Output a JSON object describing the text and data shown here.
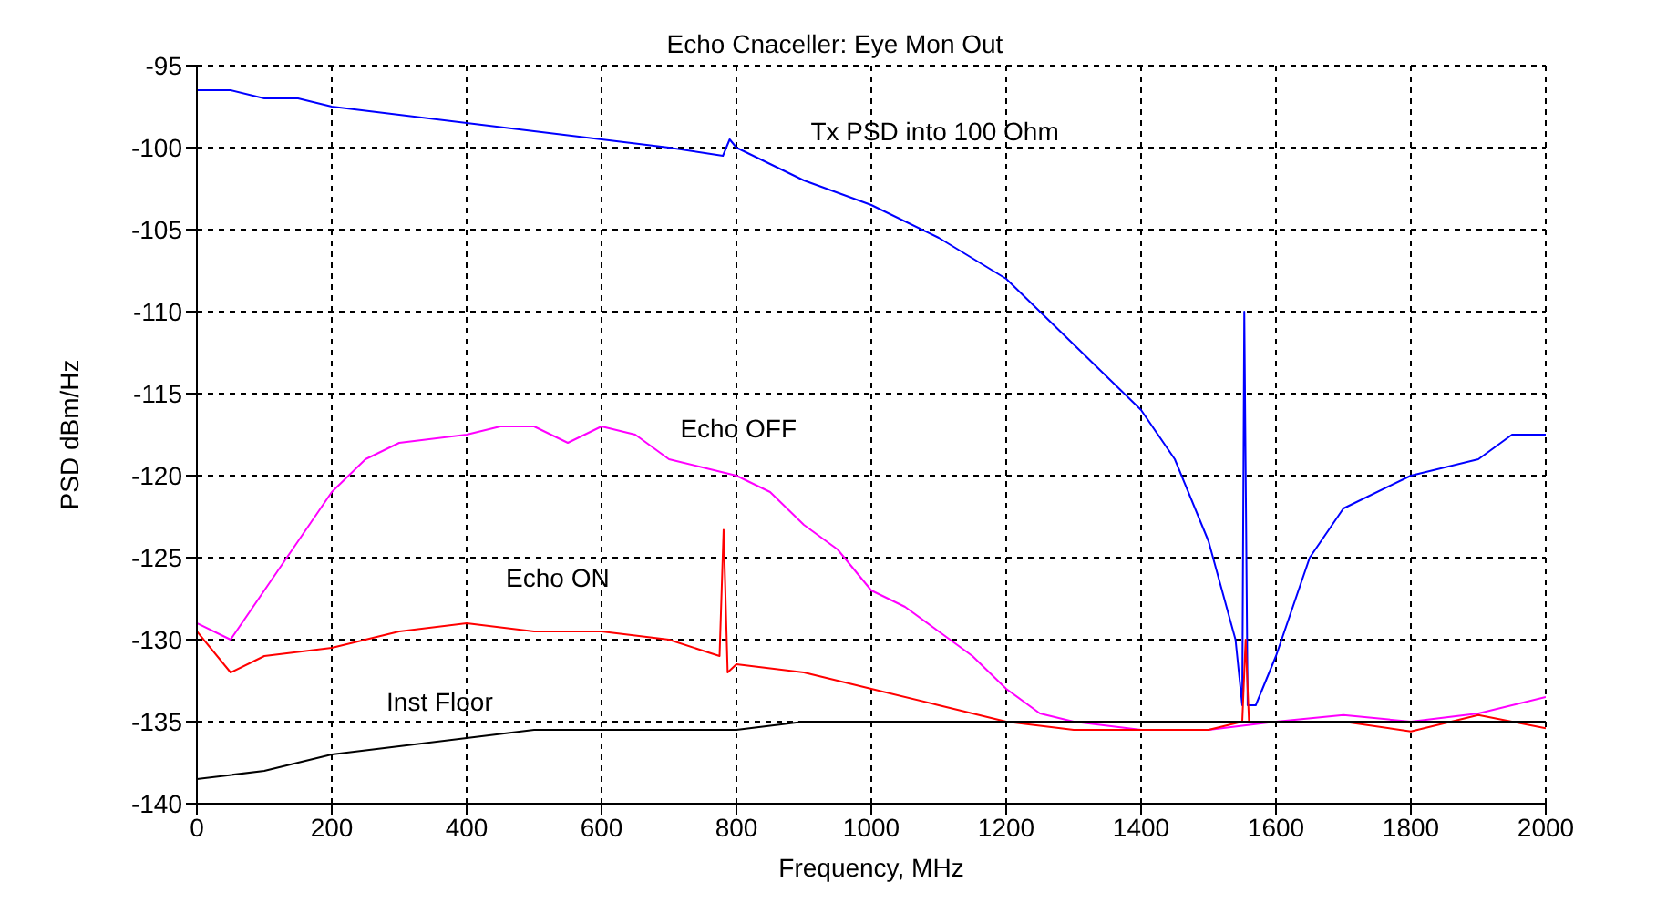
{
  "chart_data": {
    "type": "line",
    "title": "Echo Cnaceller: Eye Mon Out",
    "xlabel": "Frequency, MHz",
    "ylabel": "PSD dBm/Hz",
    "xlim": [
      0,
      2000
    ],
    "xticks": [
      0,
      200,
      400,
      600,
      800,
      1000,
      1200,
      1400,
      1600,
      1800,
      2000
    ],
    "ylim": [
      -140,
      -95
    ],
    "yticks": [
      -140,
      -135,
      -130,
      -125,
      -120,
      -115,
      -110,
      -105,
      -100,
      -95
    ],
    "grid": true,
    "marker": "none",
    "line_style": "solid",
    "series": [
      {
        "name": "Tx PSD into 100 Ohm",
        "color": "#0000ff",
        "x": [
          0,
          50,
          100,
          150,
          200,
          300,
          400,
          500,
          600,
          700,
          780,
          790,
          800,
          900,
          1000,
          1100,
          1200,
          1300,
          1400,
          1450,
          1500,
          1540,
          1550,
          1553,
          1558,
          1570,
          1580,
          1600,
          1650,
          1700,
          1800,
          1900,
          1950,
          2000
        ],
        "values": [
          -96.5,
          -96.5,
          -97,
          -97,
          -97.5,
          -98,
          -98.5,
          -99,
          -99.5,
          -100,
          -100.5,
          -99.5,
          -100,
          -102,
          -103.5,
          -105.5,
          -108,
          -112,
          -116,
          -119,
          -124,
          -130,
          -134,
          -110,
          -134,
          -134,
          -133,
          -131,
          -125,
          -122,
          -120,
          -119,
          -117.5,
          -117.5
        ]
      },
      {
        "name": "Echo OFF",
        "color": "#ff00ff",
        "x": [
          0,
          50,
          100,
          150,
          200,
          250,
          300,
          400,
          450,
          500,
          550,
          600,
          650,
          700,
          750,
          800,
          850,
          900,
          950,
          1000,
          1050,
          1100,
          1150,
          1200,
          1250,
          1300,
          1400,
          1500,
          1600,
          1700,
          1800,
          1900,
          2000
        ],
        "values": [
          -129,
          -130,
          -127,
          -124,
          -121,
          -119,
          -118,
          -117.5,
          -117,
          -117,
          -118,
          -117,
          -117.5,
          -119,
          -119.5,
          -120,
          -121,
          -123,
          -124.5,
          -127,
          -128,
          -129.5,
          -131,
          -133,
          -134.5,
          -135,
          -135.5,
          -135.5,
          -135,
          -134.6,
          -135,
          -134.5,
          -133.5
        ]
      },
      {
        "name": "Echo ON",
        "color": "#ff0000",
        "x": [
          0,
          50,
          100,
          200,
          300,
          400,
          500,
          600,
          700,
          775,
          781,
          787,
          800,
          900,
          1000,
          1100,
          1200,
          1300,
          1400,
          1500,
          1550,
          1555,
          1560,
          1700,
          1800,
          1900,
          2000
        ],
        "values": [
          -129.5,
          -132,
          -131,
          -130.5,
          -129.5,
          -129,
          -129.5,
          -129.5,
          -130,
          -131,
          -123.3,
          -132,
          -131.5,
          -132,
          -133,
          -134,
          -135,
          -135.5,
          -135.5,
          -135.5,
          -135,
          -130,
          -135,
          -135,
          -135.6,
          -134.6,
          -135.4
        ]
      },
      {
        "name": "Inst Floor",
        "color": "#000000",
        "x": [
          0,
          100,
          200,
          300,
          400,
          500,
          600,
          700,
          800,
          900,
          1000,
          1200,
          1400,
          1600,
          1800,
          2000
        ],
        "values": [
          -138.5,
          -138,
          -137,
          -136.5,
          -136,
          -135.5,
          -135.5,
          -135.5,
          -135.5,
          -135,
          -135,
          -135,
          -135,
          -135,
          -135,
          -135
        ]
      }
    ]
  }
}
